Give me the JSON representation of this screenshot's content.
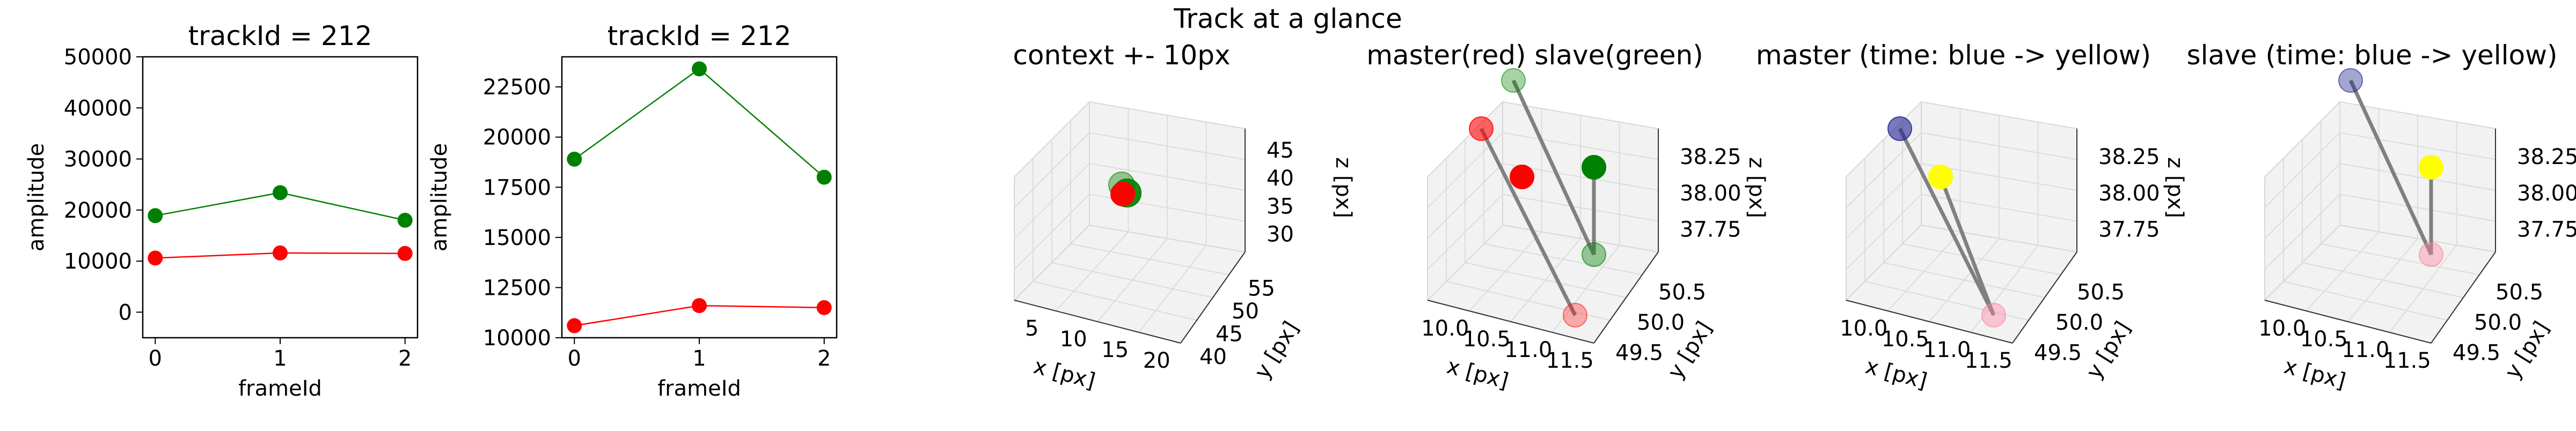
{
  "suptitle": "Track at a glance",
  "colors": {
    "master": "#ff0000",
    "slave": "#008000",
    "blue": "#1f1f8f",
    "yellow": "#ffff00",
    "gray": "#808080"
  },
  "chart_data": [
    {
      "type": "line",
      "title": "trackId = 212",
      "xlabel": "frameId",
      "ylabel": "amplitude",
      "x": [
        0,
        1,
        2
      ],
      "xticks": [
        "0",
        "1",
        "2"
      ],
      "yticks": [
        "0",
        "10000",
        "20000",
        "30000",
        "40000",
        "50000"
      ],
      "ylim": [
        -5000,
        50000
      ],
      "series": [
        {
          "color": "#008000",
          "values": [
            18900,
            23400,
            18000
          ]
        },
        {
          "color": "#ff0000",
          "values": [
            10600,
            11600,
            11500
          ]
        }
      ]
    },
    {
      "type": "line",
      "title": "trackId = 212",
      "xlabel": "frameId",
      "ylabel": "amplitude",
      "x": [
        0,
        1,
        2
      ],
      "xticks": [
        "0",
        "1",
        "2"
      ],
      "yticks": [
        "10000",
        "12500",
        "15000",
        "17500",
        "20000",
        "22500"
      ],
      "ylim": [
        10000,
        24000
      ],
      "series": [
        {
          "color": "#008000",
          "values": [
            18900,
            23400,
            18000
          ]
        },
        {
          "color": "#ff0000",
          "values": [
            10600,
            11600,
            11500
          ]
        }
      ]
    },
    {
      "type": "scatter",
      "title": "context +- 10px",
      "xlabel": "x [px]",
      "ylabel": "y [px]",
      "zlabel": "z [px]",
      "xticks": [
        "5",
        "10",
        "15",
        "20"
      ],
      "yticks": [
        "40",
        "45",
        "50",
        "55"
      ],
      "zticks": [
        "30",
        "35",
        "40",
        "45"
      ],
      "points": [
        {
          "color": "#ff0000",
          "alpha": 1.0,
          "x": 11.2,
          "y": 49.8,
          "z": 38.0
        },
        {
          "color": "#008000",
          "alpha": 0.8,
          "x": 11.6,
          "y": 50.0,
          "z": 38.1
        },
        {
          "color": "#008000",
          "alpha": 0.4,
          "x": 10.8,
          "y": 50.2,
          "z": 38.3
        }
      ]
    },
    {
      "type": "scatter",
      "title": "master(red) slave(green)",
      "xlabel": "x [px]",
      "ylabel": "y [px]",
      "zlabel": "z [px]",
      "xticks": [
        "10.0",
        "10.5",
        "11.0",
        "11.5"
      ],
      "yticks": [
        "49.5",
        "50.0",
        "50.5"
      ],
      "zticks": [
        "37.75",
        "38.00",
        "38.25"
      ]
    },
    {
      "type": "scatter",
      "title": "master (time: blue -> yellow)",
      "xlabel": "x [px]",
      "ylabel": "y [px]",
      "zlabel": "z [px]",
      "xticks": [
        "10.0",
        "10.5",
        "11.0",
        "11.5"
      ],
      "yticks": [
        "49.5",
        "50.0",
        "50.5"
      ],
      "zticks": [
        "37.75",
        "38.00",
        "38.25"
      ]
    },
    {
      "type": "scatter",
      "title": "slave (time: blue -> yellow)",
      "xlabel": "x [px]",
      "ylabel": "y [px]",
      "zlabel": "z [px]",
      "xticks": [
        "10.0",
        "10.5",
        "11.0",
        "11.5"
      ],
      "yticks": [
        "49.5",
        "50.0",
        "50.5"
      ],
      "zticks": [
        "37.75",
        "38.00",
        "38.25"
      ]
    }
  ]
}
